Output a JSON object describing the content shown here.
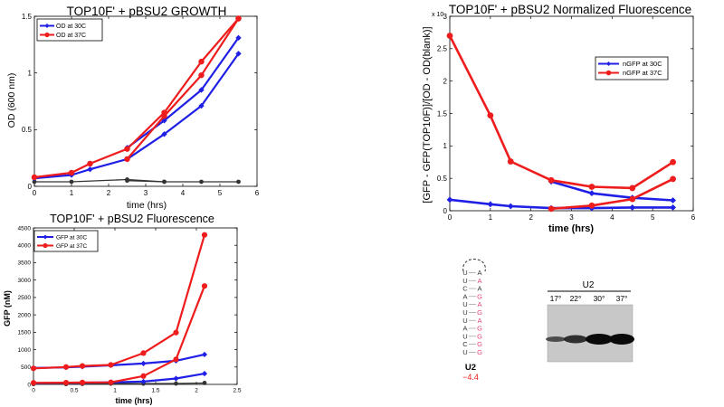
{
  "colors": {
    "blue": "#1f1fe6",
    "red": "#ee1c1c",
    "black": "#333333",
    "pink": "#e0457b"
  },
  "chart_data": [
    {
      "type": "line",
      "title": "TOP10F' + pBSU2 GROWTH",
      "xlabel": "time (hrs)",
      "ylabel": "OD (600 nm)",
      "xlim": [
        0,
        6
      ],
      "ylim": [
        0,
        1.5
      ],
      "xticks": [
        0,
        1,
        2,
        3,
        4,
        5,
        6
      ],
      "xtick_labels": [
        "0",
        "1",
        "2",
        "3",
        "4",
        "5",
        "6"
      ],
      "yticks": [
        0,
        0.5,
        1,
        1.5
      ],
      "ytick_labels": [
        "0",
        "0.5",
        "1",
        "1.5"
      ],
      "legend_position": "top-left",
      "series": [
        {
          "name": "OD at 30C",
          "color": "blue",
          "marker": "diamond",
          "x": [
            0,
            1,
            1.5,
            2.5,
            3.5,
            4.5,
            5.5
          ],
          "y": [
            0.07,
            0.1,
            0.15,
            0.24,
            0.46,
            0.71,
            1.17
          ]
        },
        {
          "name": "",
          "color": "blue",
          "marker": "diamond",
          "x": [
            2.5,
            3.5,
            4.5,
            5.5
          ],
          "y": [
            0.34,
            0.58,
            0.85,
            1.31
          ]
        },
        {
          "name": "OD at 37C",
          "color": "red",
          "marker": "circle",
          "x": [
            0,
            1,
            1.5,
            2.5,
            3.5,
            4.5,
            5.5
          ],
          "y": [
            0.08,
            0.12,
            0.2,
            0.33,
            0.65,
            1.1,
            1.48
          ]
        },
        {
          "name": "",
          "color": "red",
          "marker": "circle",
          "x": [
            2.5,
            3.5,
            4.5,
            5.5
          ],
          "y": [
            0.24,
            0.62,
            0.98,
            1.48
          ]
        },
        {
          "name": "",
          "color": "black",
          "marker": "circle",
          "x": [
            0,
            1,
            2.5,
            3.5,
            4.5,
            5.5
          ],
          "y": [
            0.04,
            0.04,
            0.06,
            0.04,
            0.04,
            0.04
          ]
        },
        {
          "name": "",
          "color": "black",
          "marker": "circle",
          "x": [
            2.5,
            3.5
          ],
          "y": [
            0.05,
            0.04
          ]
        }
      ]
    },
    {
      "type": "line",
      "title": "TOP10F' + pBSU2 Normalized Fluorescence",
      "xlabel": "time (hrs)",
      "ylabel": "[GFP - GFP(TOP10F)]/[OD - OD(blank)]",
      "axis_multiplier": "x 10",
      "xlim": [
        0,
        6
      ],
      "ylim": [
        0,
        3
      ],
      "xticks": [
        0,
        1,
        2,
        3,
        4,
        5,
        6
      ],
      "xtick_labels": [
        "0",
        "1",
        "2",
        "3",
        "4",
        "5",
        "6"
      ],
      "yticks": [
        0,
        0.5,
        1,
        1.5,
        2,
        2.5,
        3
      ],
      "ytick_labels": [
        "0",
        "0.5",
        "1",
        "1.5",
        "2",
        "2.5",
        "3"
      ],
      "legend_position": "top-right",
      "series": [
        {
          "name": "nGFP at 30C",
          "color": "blue",
          "marker": "diamond",
          "x": [
            0,
            1,
            1.5,
            2.5,
            3.5,
            4.5,
            5.5
          ],
          "y": [
            0.17,
            0.1,
            0.07,
            0.04,
            0.04,
            0.05,
            0.05
          ]
        },
        {
          "name": "",
          "color": "blue",
          "marker": "diamond",
          "x": [
            2.5,
            3.5,
            4.5,
            5.5
          ],
          "y": [
            0.45,
            0.27,
            0.2,
            0.16
          ]
        },
        {
          "name": "nGFP at 37C",
          "color": "red",
          "marker": "circle",
          "x": [
            0,
            1,
            1.5,
            2.5,
            3.5,
            4.5,
            5.5
          ],
          "y": [
            2.7,
            1.47,
            0.76,
            0.47,
            0.37,
            0.35,
            0.75
          ]
        },
        {
          "name": "",
          "color": "red",
          "marker": "circle",
          "x": [
            2.5,
            3.5,
            4.5,
            5.5
          ],
          "y": [
            0.03,
            0.08,
            0.18,
            0.49
          ]
        }
      ]
    },
    {
      "type": "line",
      "title": "TOP10F' + pBSU2 Fluorescence",
      "xlabel": "time (hrs)",
      "ylabel": "GFP (nM)",
      "xlim": [
        0,
        2.5
      ],
      "ylim": [
        0,
        4500
      ],
      "xticks": [
        0,
        0.5,
        1,
        1.5,
        2,
        2.5
      ],
      "xtick_labels": [
        "0",
        "0.5",
        "1",
        "1.5",
        "2",
        "2.5"
      ],
      "yticks": [
        0,
        500,
        1000,
        1500,
        2000,
        2500,
        3000,
        3500,
        4000,
        4500
      ],
      "ytick_labels": [
        "0",
        "500",
        "1000",
        "1500",
        "2000",
        "2500",
        "3000",
        "3500",
        "4000",
        "4500"
      ],
      "legend_position": "top-left",
      "series": [
        {
          "name": "GFP at 30C",
          "color": "blue",
          "marker": "diamond",
          "x": [
            0,
            0.4,
            0.6,
            0.95,
            1.35,
            1.75,
            2.1
          ],
          "y": [
            470,
            490,
            510,
            550,
            600,
            680,
            860
          ]
        },
        {
          "name": "",
          "color": "blue",
          "marker": "diamond",
          "x": [
            0,
            0.4,
            0.6,
            0.95,
            1.35,
            1.75,
            2.1
          ],
          "y": [
            40,
            45,
            50,
            60,
            80,
            170,
            310
          ]
        },
        {
          "name": "GFP at 37C",
          "color": "red",
          "marker": "circle",
          "x": [
            0,
            0.4,
            0.6,
            0.95,
            1.35,
            1.75,
            2.1
          ],
          "y": [
            460,
            500,
            530,
            560,
            900,
            1490,
            4300
          ]
        },
        {
          "name": "",
          "color": "red",
          "marker": "circle",
          "x": [
            0,
            0.4,
            0.6,
            0.95,
            1.35,
            1.75,
            2.1
          ],
          "y": [
            45,
            50,
            55,
            60,
            240,
            720,
            2830
          ]
        },
        {
          "name": "",
          "color": "black",
          "marker": "circle",
          "x": [
            0,
            0.4,
            0.6,
            0.95,
            1.35,
            1.75,
            2.1
          ],
          "y": [
            10,
            10,
            15,
            20,
            20,
            25,
            40
          ]
        }
      ]
    }
  ],
  "hairpin": {
    "left": [
      "U",
      "U",
      "C",
      "A",
      "U",
      "U",
      "U",
      "A",
      "U",
      "C",
      "U"
    ],
    "right": [
      "A",
      "A",
      "A",
      "G",
      "A",
      "G",
      "A",
      "G",
      "G",
      "G",
      "G"
    ],
    "name": "U2",
    "energy": "−4.4"
  },
  "gel": {
    "title": "U2",
    "lanes": [
      "17°",
      "22°",
      "30°",
      "37°"
    ],
    "band_intensity": [
      0.55,
      0.75,
      1.0,
      1.0
    ]
  }
}
